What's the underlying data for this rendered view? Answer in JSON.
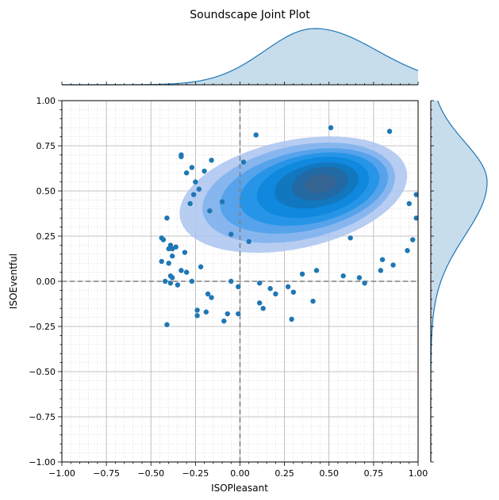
{
  "chart_data": {
    "type": "scatter",
    "title": "Soundscape Joint Plot",
    "xlabel": "ISOPleasant",
    "ylabel": "ISOEventful",
    "xlim": [
      -1.0,
      1.0
    ],
    "ylim": [
      -1.0,
      1.0
    ],
    "xticks": [
      "−1.00",
      "−0.75",
      "−0.50",
      "−0.25",
      "0.00",
      "0.25",
      "0.50",
      "0.75",
      "1.00"
    ],
    "yticks": [
      "−1.00",
      "−0.75",
      "−0.50",
      "−0.25",
      "0.00",
      "0.25",
      "0.50",
      "0.75",
      "1.00"
    ],
    "grid": true,
    "minor_grid": true,
    "reference_lines": {
      "x": 0.0,
      "y": 0.0,
      "style": "dashed",
      "color": "#808080"
    },
    "point_color": "#1f77b4",
    "density_colors": [
      "#aac4f0",
      "#7fb1ee",
      "#4ea0ea",
      "#1f93e6",
      "#0c86dc",
      "#1274b8",
      "#2766a0",
      "#3a6490"
    ],
    "kde_center": [
      0.45,
      0.54
    ],
    "marginal_x_peak": 0.42,
    "marginal_y_peak": 0.55,
    "points": [
      [
        0.51,
        0.85
      ],
      [
        0.84,
        0.83
      ],
      [
        0.09,
        0.81
      ],
      [
        -0.33,
        0.7
      ],
      [
        -0.33,
        0.69
      ],
      [
        -0.27,
        0.63
      ],
      [
        -0.2,
        0.61
      ],
      [
        -0.3,
        0.6
      ],
      [
        -0.16,
        0.67
      ],
      [
        -0.25,
        0.55
      ],
      [
        -0.28,
        0.43
      ],
      [
        -0.26,
        0.48
      ],
      [
        -0.41,
        0.35
      ],
      [
        -0.44,
        0.24
      ],
      [
        -0.43,
        0.23
      ],
      [
        -0.39,
        0.2
      ],
      [
        -0.38,
        0.18
      ],
      [
        -0.36,
        0.19
      ],
      [
        -0.4,
        0.18
      ],
      [
        -0.31,
        0.16
      ],
      [
        -0.38,
        0.14
      ],
      [
        -0.44,
        0.11
      ],
      [
        -0.4,
        0.1
      ],
      [
        -0.33,
        0.06
      ],
      [
        -0.39,
        0.03
      ],
      [
        -0.38,
        0.02
      ],
      [
        -0.3,
        0.05
      ],
      [
        -0.42,
        0.0
      ],
      [
        -0.39,
        -0.01
      ],
      [
        -0.35,
        -0.02
      ],
      [
        -0.22,
        0.08
      ],
      [
        -0.27,
        0.0
      ],
      [
        -0.18,
        -0.07
      ],
      [
        -0.16,
        -0.09
      ],
      [
        -0.19,
        -0.17
      ],
      [
        -0.24,
        -0.16
      ],
      [
        -0.24,
        -0.19
      ],
      [
        -0.05,
        0.0
      ],
      [
        -0.01,
        -0.03
      ],
      [
        -0.07,
        -0.18
      ],
      [
        -0.09,
        -0.22
      ],
      [
        -0.01,
        -0.18
      ],
      [
        -0.41,
        -0.24
      ],
      [
        0.11,
        -0.01
      ],
      [
        0.11,
        -0.12
      ],
      [
        0.13,
        -0.15
      ],
      [
        0.17,
        -0.04
      ],
      [
        0.2,
        -0.07
      ],
      [
        0.27,
        -0.03
      ],
      [
        0.29,
        -0.21
      ],
      [
        0.3,
        -0.06
      ],
      [
        0.41,
        -0.11
      ],
      [
        0.35,
        0.04
      ],
      [
        0.43,
        0.06
      ],
      [
        0.58,
        0.03
      ],
      [
        0.67,
        0.02
      ],
      [
        0.7,
        -0.01
      ],
      [
        0.79,
        0.06
      ],
      [
        0.86,
        0.09
      ],
      [
        0.94,
        0.17
      ],
      [
        0.97,
        0.23
      ],
      [
        0.99,
        0.35
      ],
      [
        0.95,
        0.43
      ],
      [
        0.99,
        0.48
      ],
      [
        0.8,
        0.12
      ],
      [
        0.62,
        0.24
      ],
      [
        0.05,
        0.22
      ],
      [
        -0.05,
        0.26
      ],
      [
        -0.17,
        0.39
      ],
      [
        -0.23,
        0.51
      ],
      [
        -0.1,
        0.44
      ],
      [
        0.02,
        0.66
      ]
    ]
  }
}
